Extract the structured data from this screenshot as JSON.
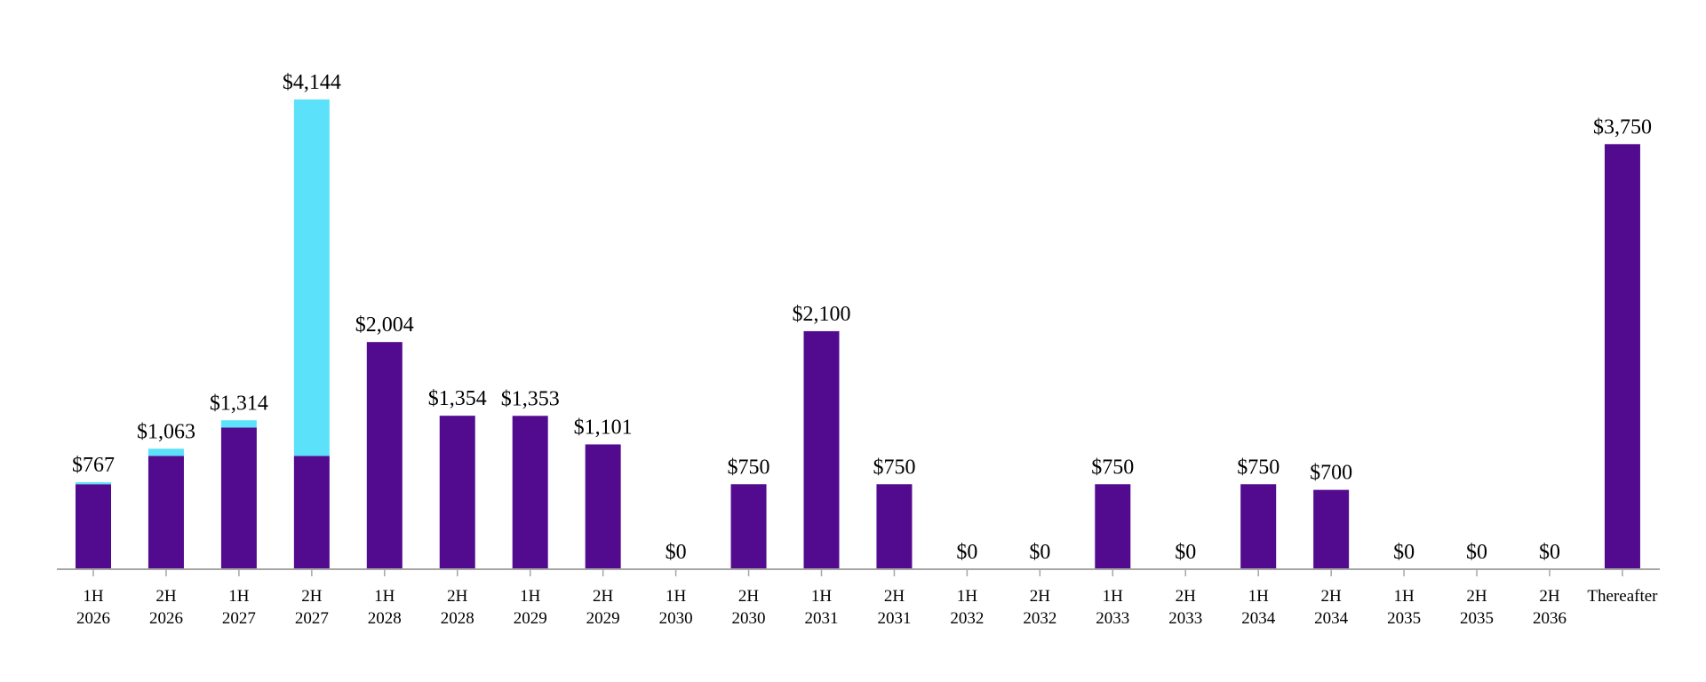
{
  "chart_data": {
    "type": "bar",
    "stacked": true,
    "title": "",
    "xlabel": "",
    "ylabel": "",
    "ylim": [
      0,
      4144
    ],
    "grid": false,
    "legend": "none",
    "categories": [
      [
        "1H",
        "2026"
      ],
      [
        "2H",
        "2026"
      ],
      [
        "1H",
        "2027"
      ],
      [
        "2H",
        "2027"
      ],
      [
        "1H",
        "2028"
      ],
      [
        "2H",
        "2028"
      ],
      [
        "1H",
        "2029"
      ],
      [
        "2H",
        "2029"
      ],
      [
        "1H",
        "2030"
      ],
      [
        "2H",
        "2030"
      ],
      [
        "1H",
        "2031"
      ],
      [
        "2H",
        "2031"
      ],
      [
        "1H",
        "2032"
      ],
      [
        "2H",
        "2032"
      ],
      [
        "1H",
        "2033"
      ],
      [
        "2H",
        "2033"
      ],
      [
        "1H",
        "2034"
      ],
      [
        "2H",
        "2034"
      ],
      [
        "1H",
        "2035"
      ],
      [
        "2H",
        "2035"
      ],
      [
        "2H",
        "2036"
      ],
      [
        "Thereafter"
      ]
    ],
    "series": [
      {
        "color": "#520b8f",
        "values": [
          750,
          1000,
          1250,
          1000,
          2004,
          1354,
          1353,
          1101,
          0,
          750,
          2100,
          750,
          0,
          0,
          750,
          0,
          750,
          700,
          0,
          0,
          0,
          3750
        ]
      },
      {
        "color": "#5ce1fa",
        "values": [
          17,
          63,
          64,
          3144,
          0,
          0,
          0,
          0,
          0,
          0,
          0,
          0,
          0,
          0,
          0,
          0,
          0,
          0,
          0,
          0,
          0,
          0
        ]
      }
    ],
    "totals": [
      "$767",
      "$1,063",
      "$1,314",
      "$4,144",
      "$2,004",
      "$1,354",
      "$1,353",
      "$1,101",
      "$0",
      "$750",
      "$2,100",
      "$750",
      "$0",
      "$0",
      "$750",
      "$0",
      "$750",
      "$700",
      "$0",
      "$0",
      "$0",
      "$3,750"
    ],
    "axis_color": "#a6a6a6"
  }
}
